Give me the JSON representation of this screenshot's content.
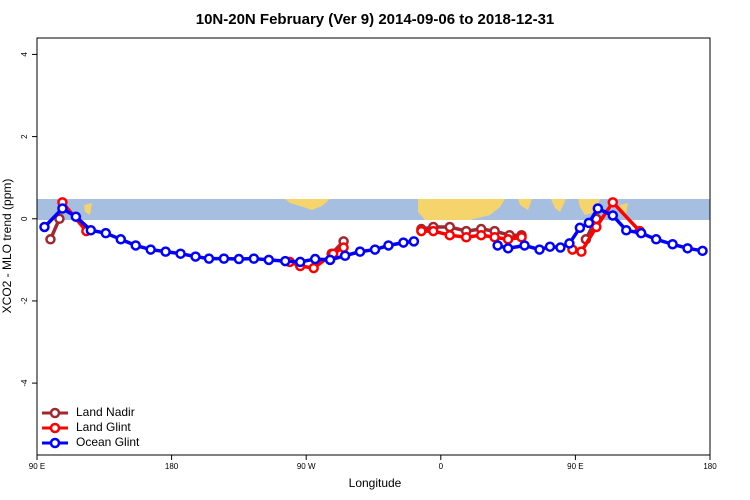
{
  "chart_data": {
    "type": "line",
    "title": "10N-20N February (Ver 9)   2014-09-06 to 2018-12-31",
    "xlabel": "Longitude",
    "ylabel": "XCO2 - MLO trend (ppm)",
    "xlim": [
      90,
      540
    ],
    "ylim": [
      -5.75,
      4.4
    ],
    "xticks": [
      {
        "value": 90,
        "label": "90 E"
      },
      180,
      {
        "value": 270,
        "label": "90 W"
      },
      {
        "value": 360,
        "label": "0"
      },
      {
        "value": 450,
        "label": "90 E"
      },
      {
        "value": 540,
        "label": "180"
      }
    ],
    "yticks": [
      -4,
      -2,
      0,
      2,
      4
    ],
    "legend": "bottom-left",
    "series": [
      {
        "name": "Land Nadir",
        "color": "#a0282e",
        "x": [
          99,
          105,
          null,
          287,
          295,
          null,
          347,
          355,
          366,
          377,
          387,
          396,
          406,
          414,
          null,
          457,
          464
        ],
        "values": [
          -0.5,
          0,
          null,
          -0.85,
          -0.55,
          null,
          -0.25,
          -0.2,
          -0.2,
          -0.3,
          -0.25,
          -0.3,
          -0.4,
          -0.4,
          null,
          -0.5,
          0
        ]
      },
      {
        "name": "Land Glint",
        "color": "#ff0000",
        "x": [
          107,
          123,
          null,
          259,
          266,
          275,
          288,
          295,
          null,
          347,
          355,
          366,
          377,
          387,
          396,
          405,
          414,
          null,
          448,
          454,
          464,
          475,
          493
        ],
        "values": [
          0.4,
          -0.3,
          null,
          -1.05,
          -1.15,
          -1.2,
          -0.85,
          -0.7,
          null,
          -0.3,
          -0.3,
          -0.4,
          -0.45,
          -0.4,
          -0.45,
          -0.5,
          -0.45,
          null,
          -0.75,
          -0.8,
          -0.2,
          0.4,
          -0.3
        ]
      },
      {
        "name": "Ocean Glint",
        "color": "#0000ff",
        "x": [
          95,
          107,
          116,
          126,
          136,
          146,
          156,
          166,
          176,
          186,
          196,
          205,
          215,
          225,
          235,
          245,
          256,
          266,
          276,
          286,
          296,
          306,
          316,
          325,
          335,
          342,
          null,
          398,
          405,
          416,
          426,
          433,
          440,
          446,
          453,
          459,
          465,
          475,
          484,
          494,
          504,
          515,
          525,
          535
        ],
        "values": [
          -0.2,
          0.25,
          0.05,
          -0.28,
          -0.35,
          -0.5,
          -0.65,
          -0.75,
          -0.8,
          -0.85,
          -0.92,
          -0.97,
          -0.97,
          -0.98,
          -0.97,
          -1.0,
          -1.03,
          -1.05,
          -0.98,
          -1.0,
          -0.9,
          -0.8,
          -0.75,
          -0.65,
          -0.58,
          -0.55,
          null,
          -0.65,
          -0.72,
          -0.65,
          -0.75,
          -0.68,
          -0.7,
          -0.6,
          -0.22,
          -0.1,
          0.25,
          0.08,
          -0.28,
          -0.35,
          -0.5,
          -0.62,
          -0.72,
          -0.78
        ]
      }
    ]
  }
}
